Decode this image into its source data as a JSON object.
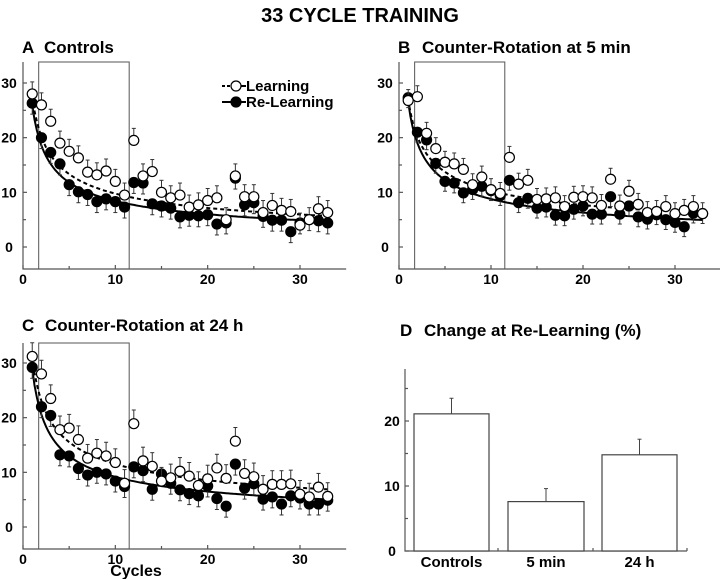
{
  "figure_title": "33 CYCLE TRAINING",
  "chart_data": [
    {
      "type": "scatter",
      "panel": "A",
      "title": "Controls",
      "xlabel": "",
      "ylabel": "",
      "xlim": [
        0,
        35
      ],
      "ylim": [
        -4,
        34
      ],
      "xticks": [
        0,
        10,
        20,
        30
      ],
      "yticks": [
        0,
        10,
        20,
        30
      ],
      "highlight_box_x": [
        1.7,
        11.5
      ],
      "legend": {
        "placement": "top-right",
        "entries": [
          "Learning",
          "Re-Learning"
        ]
      },
      "x": [
        1,
        2,
        3,
        4,
        5,
        6,
        7,
        8,
        9,
        10,
        11,
        12,
        13,
        14,
        15,
        16,
        17,
        18,
        19,
        20,
        21,
        22,
        23,
        24,
        25,
        26,
        27,
        28,
        29,
        30,
        31,
        32,
        33
      ],
      "series": [
        {
          "name": "Learning",
          "marker": "open-circle",
          "fit": {
            "a": 27.5,
            "b": 0.45
          },
          "err": 2.2,
          "values": [
            28,
            26,
            23,
            19,
            17.5,
            16.3,
            13.7,
            13.2,
            13.9,
            12,
            9.5,
            19.5,
            13,
            13.8,
            10,
            9,
            9.5,
            7.3,
            7.7,
            8.5,
            9,
            5,
            13,
            9.2,
            9.2,
            6.3,
            7.6,
            6.7,
            6.5,
            4,
            5,
            7,
            6.3
          ]
        },
        {
          "name": "Re-Learning",
          "marker": "filled-circle",
          "fit": {
            "a": 26,
            "b": 0.49
          },
          "err": 2,
          "values": [
            26.3,
            20,
            17.3,
            15.2,
            11.4,
            10.1,
            9.6,
            8.3,
            8.8,
            8.3,
            7.3,
            11.8,
            11.7,
            7.9,
            7.5,
            7.1,
            5.5,
            5.8,
            5.7,
            5.9,
            4.2,
            4.4,
            12.6,
            7.7,
            8.1,
            5.6,
            4.9,
            4.9,
            2.8,
            4.4,
            5,
            4.8,
            4.4
          ]
        }
      ]
    },
    {
      "type": "scatter",
      "panel": "B",
      "title": "Counter-Rotation at 5 min",
      "xlabel": "",
      "ylabel": "",
      "xlim": [
        0,
        35
      ],
      "ylim": [
        -4,
        34
      ],
      "xticks": [
        0,
        10,
        20,
        30
      ],
      "yticks": [
        0,
        10,
        20,
        30
      ],
      "highlight_box_x": [
        1.7,
        11.5
      ],
      "x": [
        1,
        2,
        3,
        4,
        5,
        6,
        7,
        8,
        9,
        10,
        11,
        12,
        13,
        14,
        15,
        16,
        17,
        18,
        19,
        20,
        21,
        22,
        23,
        24,
        25,
        26,
        27,
        28,
        29,
        30,
        31,
        32,
        33
      ],
      "series": [
        {
          "name": "Learning",
          "marker": "open-circle",
          "fit": {
            "a": 27,
            "b": 0.42
          },
          "err": 2,
          "values": [
            26.8,
            27.5,
            20.8,
            18,
            15.5,
            15.2,
            14.2,
            11.4,
            12.8,
            10.5,
            9.8,
            16.4,
            11.5,
            12.2,
            8.7,
            8.8,
            9,
            7.4,
            9.1,
            9.2,
            9,
            7.6,
            12.4,
            7.5,
            10.2,
            7.8,
            6.3,
            6.5,
            7.4,
            6.1,
            6.7,
            7.4,
            6.1
          ]
        },
        {
          "name": "Re-Learning",
          "marker": "filled-circle",
          "fit": {
            "a": 26.5,
            "b": 0.48
          },
          "err": 1.8,
          "values": [
            27.3,
            21,
            19.6,
            15.3,
            12,
            11.7,
            9.9,
            10.5,
            11.1,
            10.3,
            9.4,
            12.2,
            8.1,
            8.9,
            7.1,
            7.3,
            5.8,
            5.7,
            6.9,
            7.5,
            6,
            6,
            9.2,
            6,
            7.5,
            5.5,
            5.1,
            5.9,
            5,
            4.5,
            3.7,
            6.2,
            6.1
          ]
        }
      ]
    },
    {
      "type": "scatter",
      "panel": "C",
      "title": "Counter-Rotation at 24 h",
      "xlabel": "Cycles",
      "ylabel": "",
      "xlim": [
        0,
        35
      ],
      "ylim": [
        -4,
        34
      ],
      "xticks": [
        0,
        10,
        20,
        30
      ],
      "yticks": [
        0,
        10,
        20,
        30
      ],
      "highlight_box_x": [
        1.7,
        11.5
      ],
      "x": [
        1,
        2,
        3,
        4,
        5,
        6,
        7,
        8,
        9,
        10,
        11,
        12,
        13,
        14,
        15,
        16,
        17,
        18,
        19,
        20,
        21,
        22,
        23,
        24,
        25,
        26,
        27,
        28,
        29,
        30,
        31,
        32,
        33
      ],
      "series": [
        {
          "name": "Learning",
          "marker": "open-circle",
          "fit": {
            "a": 31,
            "b": 0.43
          },
          "err": 2.5,
          "values": [
            31.2,
            28,
            23.5,
            17.8,
            18.1,
            16,
            12.6,
            13.5,
            13,
            11.8,
            8,
            18.9,
            12.1,
            11.1,
            8.4,
            9,
            10.2,
            9.3,
            7.6,
            8.8,
            10.8,
            8.9,
            15.7,
            9.8,
            9.2,
            6.9,
            7.8,
            7.8,
            7.9,
            6,
            5.5,
            7.3,
            5.6
          ]
        },
        {
          "name": "Re-Learning",
          "marker": "filled-circle",
          "fit": {
            "a": 29,
            "b": 0.5
          },
          "err": 2,
          "values": [
            29.2,
            22,
            20.4,
            13.2,
            13,
            10.7,
            9.5,
            10,
            9.7,
            8.4,
            7.4,
            11,
            10.3,
            6.9,
            9.7,
            8,
            6.8,
            6.1,
            5.7,
            7.5,
            5.2,
            3.8,
            11.5,
            7.1,
            7.9,
            5.1,
            5.5,
            4.2,
            5.7,
            5.3,
            4.2,
            4.2,
            4.9
          ]
        }
      ]
    },
    {
      "type": "bar",
      "panel": "D",
      "title": "Change at Re-Learning (%)",
      "xlabel": "",
      "ylabel": "",
      "ylim": [
        0,
        28
      ],
      "yticks": [
        0,
        10,
        20
      ],
      "minor_yticks": [
        5,
        15,
        25
      ],
      "categories": [
        "Controls",
        "5 min",
        "24 h"
      ],
      "values": [
        21.1,
        7.6,
        14.8
      ],
      "errors": [
        2.4,
        2.0,
        2.4
      ]
    }
  ]
}
